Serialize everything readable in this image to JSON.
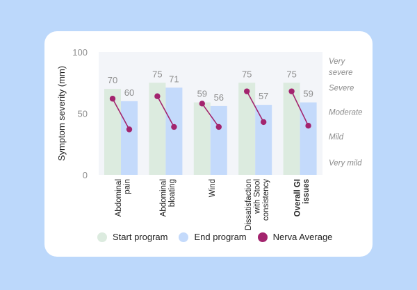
{
  "chart_data": {
    "type": "bar",
    "title": "",
    "ylabel": "Symptom severity (mm)",
    "xlabel": "",
    "ylim": [
      0,
      100
    ],
    "yticks": [
      0,
      50,
      100
    ],
    "categories": [
      {
        "lines": [
          "Abdominal",
          "pain"
        ],
        "bold": false
      },
      {
        "lines": [
          "Abdominal",
          "bloating"
        ],
        "bold": false
      },
      {
        "lines": [
          "Wind"
        ],
        "bold": false
      },
      {
        "lines": [
          "Dissatisfaction",
          "with Stool",
          "consistency"
        ],
        "bold": false
      },
      {
        "lines": [
          "Overall GI",
          "issues"
        ],
        "bold": true
      }
    ],
    "series": [
      {
        "name": "Start program",
        "values": [
          70,
          75,
          59,
          75,
          75
        ],
        "color": "#dcebdf"
      },
      {
        "name": "End program",
        "values": [
          60,
          71,
          56,
          57,
          59
        ],
        "color": "#c4dafb"
      },
      {
        "name": "Nerva Average",
        "start": [
          62,
          64,
          58,
          68,
          68
        ],
        "end": [
          37,
          39,
          39,
          43,
          40
        ],
        "color": "#a3246e"
      }
    ],
    "severity_labels": [
      {
        "text": [
          "Very",
          "severe"
        ],
        "value": 88
      },
      {
        "text": [
          "Severe"
        ],
        "value": 71
      },
      {
        "text": [
          "Moderate"
        ],
        "value": 51
      },
      {
        "text": [
          "Mild"
        ],
        "value": 31
      },
      {
        "text": [
          "Very mild"
        ],
        "value": 10
      }
    ]
  },
  "legend": {
    "start_label": "Start program",
    "end_label": "End program",
    "nerva_label": "Nerva Average"
  },
  "colors": {
    "background": "#bcd8fb",
    "plot_bg": "#f3f5f9",
    "label_gray": "#8d8d8d"
  }
}
